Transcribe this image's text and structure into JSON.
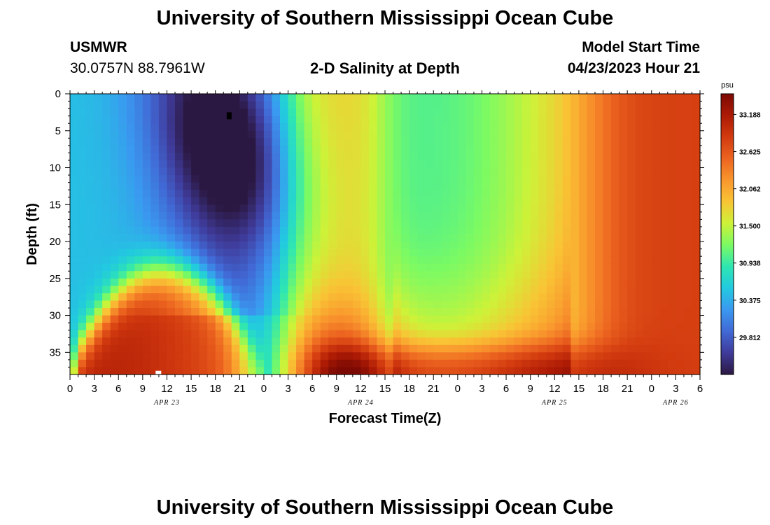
{
  "header": {
    "title": "University of Southern Mississippi Ocean Cube",
    "station": "USMWR",
    "coords": "30.0757N  88.7961W",
    "plot_title": "2-D Salinity at Depth",
    "model_label": "Model Start Time",
    "model_time": "04/23/2023 Hour 21"
  },
  "footer": {
    "title": "University of Southern Mississippi Ocean Cube"
  },
  "chart_data": {
    "type": "heatmap",
    "title": "2-D Salinity at Depth",
    "xlabel": "Forecast Time(Z)",
    "ylabel": "Depth (ft)",
    "x_unit": "hours from APR 23 00Z",
    "x_range": [
      0,
      78
    ],
    "y_range": [
      0,
      38
    ],
    "y_inverted": true,
    "x_tick_labels": [
      "0",
      "3",
      "6",
      "9",
      "12",
      "15",
      "18",
      "21",
      "0",
      "3",
      "6",
      "9",
      "12",
      "15",
      "18",
      "21",
      "0",
      "3",
      "6",
      "9",
      "12",
      "15",
      "18",
      "21",
      "0",
      "3",
      "6"
    ],
    "y_ticks": [
      0,
      5,
      10,
      15,
      20,
      25,
      30,
      35
    ],
    "date_labels": [
      {
        "label": "APR 23",
        "hour": 12
      },
      {
        "label": "APR 24",
        "hour": 36
      },
      {
        "label": "APR 25",
        "hour": 60
      },
      {
        "label": "APR 26",
        "hour": 75
      }
    ],
    "colorbar": {
      "unit": "psu",
      "min": 29.25,
      "max": 33.5,
      "tick_values": [
        33.188,
        32.625,
        32.062,
        31.5,
        30.938,
        30.375,
        29.812
      ],
      "tick_labels": [
        "33.188",
        "32.625",
        "32.062",
        "31.500",
        "30.938",
        "30.375",
        "29.812"
      ],
      "colormap": [
        "#2b1842",
        "#3f3b9a",
        "#4169d5",
        "#3a98f0",
        "#22c9e0",
        "#2ee6b2",
        "#7bfa63",
        "#cdf238",
        "#f9c435",
        "#f9962d",
        "#ec6420",
        "#d23a0f",
        "#ac1a05",
        "#7c0a03"
      ]
    },
    "field_description_values": {
      "surface_0_9h": 30.5,
      "surface_min_near_20h": 29.4,
      "bottom_max_near_12h": 33.4,
      "mid_plateau_27_36h": 31.8,
      "trough_48_60h": 31.0,
      "end_value_70_78h": 32.8
    }
  }
}
